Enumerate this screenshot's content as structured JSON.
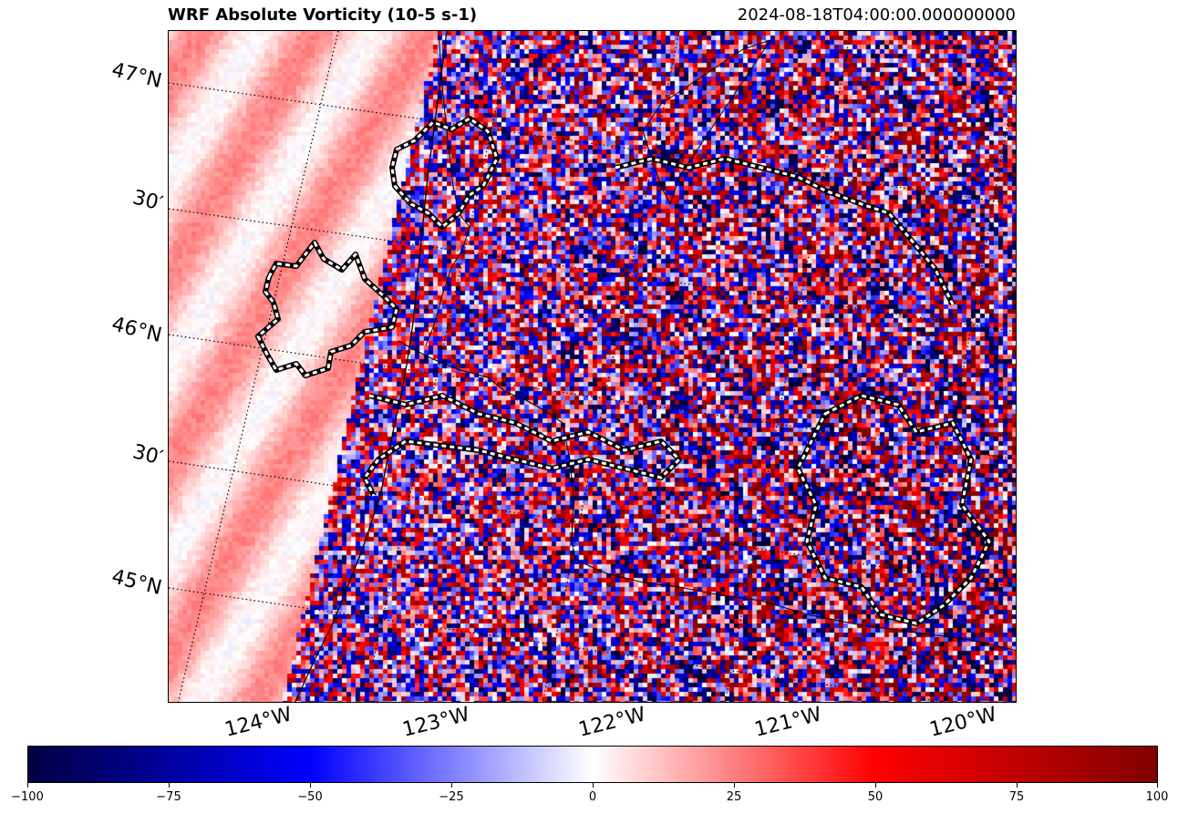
{
  "title": "WRF Absolute Vorticity (10-5 s-1)",
  "timestamp": "2024-08-18T04:00:00.000000000",
  "map": {
    "variable": "absolute vorticity",
    "lat_labels": [
      "47°N",
      "30′",
      "46°N",
      "30′",
      "45°N"
    ],
    "lon_labels": [
      "124°W",
      "123°W",
      "122°W",
      "121°W",
      "120°W"
    ],
    "gridlines": "dotted",
    "colormap": "seismic",
    "colors": {
      "ocean_field": "#fbd6d6",
      "negative": "#0000ff",
      "positive": "#ff0000",
      "coastline": "#000000",
      "contour": "#ffffff"
    }
  },
  "colorbar": {
    "min": -100,
    "max": 100,
    "ticks": [
      "−100",
      "−75",
      "−50",
      "−25",
      "0",
      "25",
      "50",
      "75",
      "100"
    ]
  }
}
